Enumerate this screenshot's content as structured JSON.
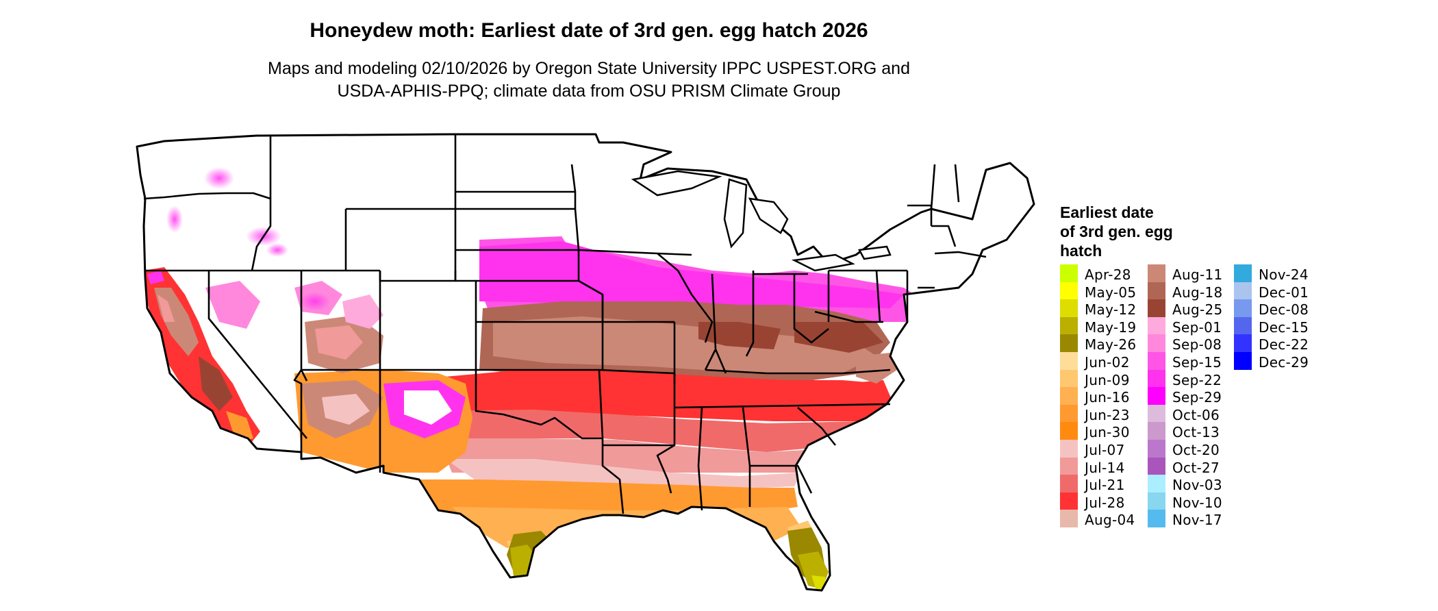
{
  "title": "Honeydew moth: Earliest date of 3rd gen. egg hatch 2026",
  "subtitle_lines": [
    "Maps and modeling 02/10/2026 by Oregon State University IPPC USPEST.ORG and",
    "USDA-APHIS-PPQ; climate data from OSU PRISM Climate Group"
  ],
  "legend": {
    "title_lines": [
      "Earliest date",
      "of 3rd gen. egg",
      "hatch"
    ],
    "columns": [
      [
        {
          "label": "Apr-28",
          "color": "#ccff00"
        },
        {
          "label": "May-05",
          "color": "#ffff00"
        },
        {
          "label": "May-12",
          "color": "#dddd00"
        },
        {
          "label": "May-19",
          "color": "#bbb000"
        },
        {
          "label": "May-26",
          "color": "#998800"
        },
        {
          "label": "Jun-02",
          "color": "#ffdd99"
        },
        {
          "label": "Jun-09",
          "color": "#ffc870"
        },
        {
          "label": "Jun-16",
          "color": "#ffb050"
        },
        {
          "label": "Jun-23",
          "color": "#ff9a30"
        },
        {
          "label": "Jun-30",
          "color": "#ff8a10"
        },
        {
          "label": "Jul-07",
          "color": "#f5c2c2"
        },
        {
          "label": "Jul-14",
          "color": "#f09a9a"
        },
        {
          "label": "Jul-21",
          "color": "#f06a6a"
        },
        {
          "label": "Jul-28",
          "color": "#ff3333"
        },
        {
          "label": "Aug-04",
          "color": "#e8b8aa"
        }
      ],
      [
        {
          "label": "Aug-11",
          "color": "#cc8877"
        },
        {
          "label": "Aug-18",
          "color": "#b06655"
        },
        {
          "label": "Aug-25",
          "color": "#994433"
        },
        {
          "label": "Sep-01",
          "color": "#ffaadd"
        },
        {
          "label": "Sep-08",
          "color": "#ff88dd"
        },
        {
          "label": "Sep-15",
          "color": "#ff55e6"
        },
        {
          "label": "Sep-22",
          "color": "#ff33ee"
        },
        {
          "label": "Sep-29",
          "color": "#ff00ff"
        },
        {
          "label": "Oct-06",
          "color": "#ddbbdd"
        },
        {
          "label": "Oct-13",
          "color": "#cc99cc"
        },
        {
          "label": "Oct-20",
          "color": "#bb77cc"
        },
        {
          "label": "Oct-27",
          "color": "#aa55bb"
        },
        {
          "label": "Nov-03",
          "color": "#aaeeff"
        },
        {
          "label": "Nov-10",
          "color": "#88d6f0"
        },
        {
          "label": "Nov-17",
          "color": "#55bbee"
        }
      ],
      [
        {
          "label": "Nov-24",
          "color": "#33aadd"
        },
        {
          "label": "Dec-01",
          "color": "#aac4ee"
        },
        {
          "label": "Dec-08",
          "color": "#7799ee"
        },
        {
          "label": "Dec-15",
          "color": "#5566ee"
        },
        {
          "label": "Dec-22",
          "color": "#3333ff"
        },
        {
          "label": "Dec-29",
          "color": "#0000ff"
        }
      ]
    ]
  },
  "colors": {
    "background": "#ffffff",
    "state_border": "#000000",
    "no_data": "#ffffff"
  }
}
